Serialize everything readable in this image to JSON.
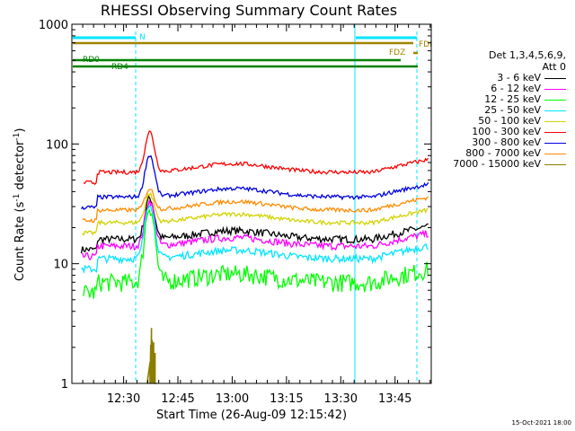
{
  "chart_data": {
    "type": "line",
    "title": "RHESSI Observing Summary Count Rates",
    "xlabel": "Start Time (26-Aug-09 12:15:42)",
    "ylabel_main": "Count Rate (s",
    "ylabel_sup1": "-1",
    "ylabel_mid": " detector",
    "ylabel_sup2": "-1",
    "ylabel_end": ")",
    "y_scale": "log",
    "ylim": [
      1,
      1000
    ],
    "xlim": [
      "12:15:42",
      "13:55:00"
    ],
    "y_ticks": [
      "1",
      "10",
      "100",
      "1000"
    ],
    "x_ticks": [
      "12:30",
      "12:45",
      "13:00",
      "13:15",
      "13:30",
      "13:45"
    ],
    "timestamp": "15-Oct-2021 18:00",
    "legend": {
      "header1": "Det 1,3,4,5,6,9,",
      "header2": "Att 0",
      "placement": "right"
    },
    "series": [
      {
        "name": "3 - 6 keV",
        "color": "#000000",
        "base": 16,
        "peak": 35
      },
      {
        "name": "6 - 12 keV",
        "color": "#ff00ff",
        "base": 14,
        "peak": 33
      },
      {
        "name": "12 - 25 keV",
        "color": "#00ff00",
        "base": 7,
        "peak": 30
      },
      {
        "name": "25 - 50 keV",
        "color": "#00e5ff",
        "base": 11,
        "peak": 32
      },
      {
        "name": "50 - 100 keV",
        "color": "#d2d200",
        "base": 22,
        "peak": 38
      },
      {
        "name": "100 - 300 keV",
        "color": "#ff0000",
        "base": 58,
        "peak": 125
      },
      {
        "name": "300 - 800 keV",
        "color": "#0000e0",
        "base": 36,
        "peak": 80
      },
      {
        "name": "800 - 7000 keV",
        "color": "#ff8c00",
        "base": 28,
        "peak": 42
      },
      {
        "name": "7000 - 15000 keV",
        "color": "#8b7d00",
        "base": 1,
        "peak": 3
      }
    ],
    "flags": [
      {
        "name": "N",
        "color": "#00e5ff"
      },
      {
        "name": "FDI",
        "color": "#a08400"
      },
      {
        "name": "FDZ",
        "color": "#a08400"
      },
      {
        "name": "RD0",
        "color": "#008000"
      },
      {
        "name": "RD4",
        "color": "#008000"
      }
    ]
  }
}
